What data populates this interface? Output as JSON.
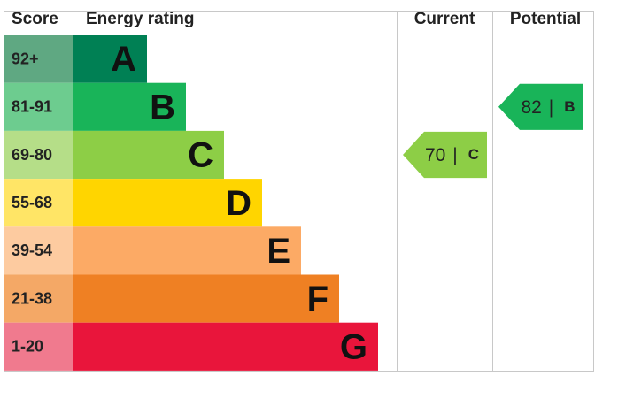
{
  "headers": {
    "score": "Score",
    "rating": "Energy rating",
    "current": "Current",
    "potential": "Potential"
  },
  "bands": [
    {
      "score": "92+",
      "letter": "A",
      "color": "#008054",
      "light": "#5fa882"
    },
    {
      "score": "81-91",
      "letter": "B",
      "color": "#19b459",
      "light": "#6dcc8f"
    },
    {
      "score": "69-80",
      "letter": "C",
      "color": "#8dce46",
      "light": "#b5de88"
    },
    {
      "score": "55-68",
      "letter": "D",
      "color": "#ffd500",
      "light": "#ffe566"
    },
    {
      "score": "39-54",
      "letter": "E",
      "color": "#fcaa65",
      "light": "#fdcba0"
    },
    {
      "score": "21-38",
      "letter": "F",
      "color": "#ef8023",
      "light": "#f4a866"
    },
    {
      "score": "1-20",
      "letter": "G",
      "color": "#e9153b",
      "light": "#f07a8e"
    }
  ],
  "current": {
    "value": 70,
    "separator": "|",
    "letter": "C"
  },
  "potential": {
    "value": 82,
    "separator": "|",
    "letter": "B"
  }
}
